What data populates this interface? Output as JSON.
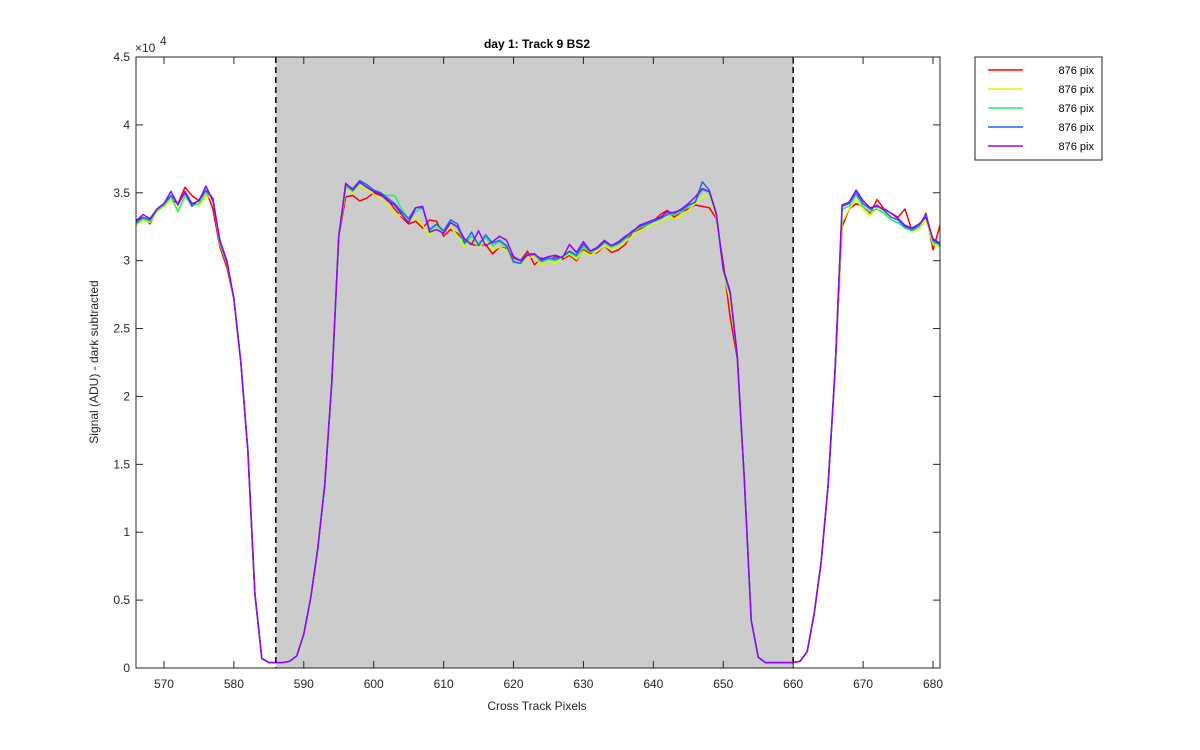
{
  "chart_data": {
    "type": "line",
    "title": "day 1: Track 9  BS2",
    "xlabel": "Cross Track Pixels",
    "ylabel": "Signal (ADU) - dark subtracted",
    "y_exponent_label": "×10",
    "y_exponent_power": "4",
    "xlim": [
      566,
      681
    ],
    "ylim": [
      0,
      4.5
    ],
    "y_scale_factor": 10000,
    "xticks": [
      570,
      580,
      590,
      600,
      610,
      620,
      630,
      640,
      650,
      660,
      670,
      680
    ],
    "xtick_labels": [
      "570",
      "580",
      "590",
      "600",
      "610",
      "620",
      "630",
      "640",
      "650",
      "660",
      "670",
      "680"
    ],
    "yticks": [
      0,
      0.5,
      1,
      1.5,
      2,
      2.5,
      3,
      3.5,
      4,
      4.5
    ],
    "ytick_labels": [
      "0",
      "0.5",
      "1",
      "1.5",
      "2",
      "2.5",
      "3",
      "3.5",
      "4",
      "4.5"
    ],
    "grid": false,
    "legend_position": "outside-top-right",
    "shaded_region": {
      "x_start": 586,
      "x_end": 660,
      "color": "#cccccc"
    },
    "vlines": [
      586,
      660
    ],
    "x": [
      566,
      567,
      568,
      569,
      570,
      571,
      572,
      573,
      574,
      575,
      576,
      577,
      578,
      579,
      580,
      581,
      582,
      583,
      584,
      585,
      586,
      587,
      588,
      589,
      590,
      591,
      592,
      593,
      594,
      595,
      596,
      597,
      598,
      599,
      600,
      601,
      602,
      603,
      604,
      605,
      606,
      607,
      608,
      609,
      610,
      611,
      612,
      613,
      614,
      615,
      616,
      617,
      618,
      619,
      620,
      621,
      622,
      623,
      624,
      625,
      626,
      627,
      628,
      629,
      630,
      631,
      632,
      633,
      634,
      635,
      636,
      637,
      638,
      639,
      640,
      641,
      642,
      643,
      644,
      645,
      646,
      647,
      648,
      649,
      650,
      651,
      652,
      653,
      654,
      655,
      656,
      657,
      658,
      659,
      660,
      661,
      662,
      663,
      664,
      665,
      666,
      667,
      668,
      669,
      670,
      671,
      672,
      673,
      674,
      675,
      676,
      677,
      678,
      679,
      680,
      681
    ],
    "series": [
      {
        "name": "876 pix",
        "color": "#ff0000",
        "values": [
          3.3,
          3.32,
          3.27,
          3.37,
          3.4,
          3.45,
          3.42,
          3.54,
          3.48,
          3.44,
          3.52,
          3.38,
          3.1,
          2.95,
          2.72,
          2.25,
          1.6,
          0.55,
          0.07,
          0.04,
          0.04,
          0.04,
          0.05,
          0.09,
          0.25,
          0.52,
          0.88,
          1.35,
          2.1,
          3.18,
          3.47,
          3.48,
          3.44,
          3.46,
          3.5,
          3.48,
          3.45,
          3.38,
          3.32,
          3.27,
          3.29,
          3.24,
          3.3,
          3.29,
          3.18,
          3.23,
          3.2,
          3.14,
          3.12,
          3.11,
          3.12,
          3.05,
          3.1,
          3.09,
          3.02,
          3.0,
          3.07,
          2.97,
          3.02,
          3.0,
          3.03,
          3.01,
          3.04,
          3.0,
          3.08,
          3.05,
          3.06,
          3.11,
          3.06,
          3.08,
          3.12,
          3.21,
          3.23,
          3.26,
          3.29,
          3.34,
          3.37,
          3.32,
          3.36,
          3.38,
          3.41,
          3.4,
          3.39,
          3.31,
          2.98,
          2.58,
          2.28,
          1.4,
          0.35,
          0.08,
          0.04,
          0.04,
          0.04,
          0.04,
          0.04,
          0.05,
          0.12,
          0.4,
          0.78,
          1.35,
          2.2,
          3.25,
          3.38,
          3.42,
          3.4,
          3.35,
          3.45,
          3.38,
          3.35,
          3.32,
          3.38,
          3.22,
          3.25,
          3.35,
          3.08,
          3.26
        ]
      },
      {
        "name": "876 pix",
        "color": "#ccff00",
        "values": [
          3.26,
          3.3,
          3.28,
          3.36,
          3.4,
          3.45,
          3.38,
          3.46,
          3.43,
          3.4,
          3.48,
          3.45,
          3.12,
          2.98,
          2.72,
          2.25,
          1.6,
          0.55,
          0.07,
          0.04,
          0.04,
          0.04,
          0.05,
          0.09,
          0.25,
          0.52,
          0.88,
          1.35,
          2.1,
          3.18,
          3.52,
          3.5,
          3.55,
          3.53,
          3.49,
          3.46,
          3.41,
          3.35,
          3.33,
          3.29,
          3.32,
          3.26,
          3.18,
          3.24,
          3.2,
          3.25,
          3.18,
          3.1,
          3.16,
          3.1,
          3.14,
          3.08,
          3.1,
          3.08,
          3.0,
          2.98,
          3.02,
          3.03,
          2.96,
          3.0,
          2.98,
          3.02,
          3.05,
          3.01,
          3.07,
          3.04,
          3.07,
          3.11,
          3.08,
          3.1,
          3.14,
          3.18,
          3.22,
          3.24,
          3.27,
          3.29,
          3.32,
          3.31,
          3.33,
          3.37,
          3.42,
          3.47,
          3.48,
          3.32,
          2.92,
          2.7,
          2.3,
          1.4,
          0.35,
          0.08,
          0.04,
          0.04,
          0.04,
          0.04,
          0.04,
          0.05,
          0.12,
          0.4,
          0.78,
          1.35,
          2.2,
          3.28,
          3.38,
          3.45,
          3.38,
          3.33,
          3.4,
          3.36,
          3.32,
          3.3,
          3.25,
          3.22,
          3.23,
          3.3,
          3.12,
          3.1
        ]
      },
      {
        "name": "876 pix",
        "color": "#22ee66",
        "values": [
          3.27,
          3.31,
          3.29,
          3.37,
          3.41,
          3.47,
          3.36,
          3.48,
          3.41,
          3.42,
          3.5,
          3.46,
          3.13,
          2.99,
          2.72,
          2.25,
          1.6,
          0.55,
          0.07,
          0.04,
          0.04,
          0.04,
          0.05,
          0.09,
          0.25,
          0.52,
          0.88,
          1.35,
          2.1,
          3.18,
          3.55,
          3.51,
          3.57,
          3.55,
          3.52,
          3.49,
          3.48,
          3.48,
          3.38,
          3.3,
          3.36,
          3.39,
          3.22,
          3.26,
          3.21,
          3.28,
          3.24,
          3.12,
          3.18,
          3.13,
          3.17,
          3.11,
          3.14,
          3.1,
          3.0,
          2.98,
          3.04,
          3.04,
          2.99,
          3.01,
          3.0,
          3.03,
          3.06,
          3.03,
          3.1,
          3.06,
          3.09,
          3.13,
          3.1,
          3.12,
          3.16,
          3.21,
          3.24,
          3.26,
          3.29,
          3.31,
          3.34,
          3.34,
          3.36,
          3.4,
          3.44,
          3.52,
          3.5,
          3.34,
          2.93,
          2.75,
          2.3,
          1.4,
          0.35,
          0.08,
          0.04,
          0.04,
          0.04,
          0.04,
          0.04,
          0.05,
          0.12,
          0.4,
          0.78,
          1.35,
          2.2,
          3.38,
          3.4,
          3.48,
          3.4,
          3.36,
          3.38,
          3.35,
          3.3,
          3.28,
          3.24,
          3.22,
          3.25,
          3.33,
          3.14,
          3.11
        ]
      },
      {
        "name": "876 pix",
        "color": "#1a66ff",
        "values": [
          3.28,
          3.32,
          3.3,
          3.38,
          3.42,
          3.48,
          3.42,
          3.5,
          3.4,
          3.45,
          3.52,
          3.46,
          3.14,
          2.99,
          2.72,
          2.25,
          1.6,
          0.55,
          0.07,
          0.04,
          0.04,
          0.04,
          0.05,
          0.09,
          0.25,
          0.52,
          0.88,
          1.35,
          2.1,
          3.18,
          3.56,
          3.53,
          3.59,
          3.56,
          3.52,
          3.5,
          3.46,
          3.42,
          3.36,
          3.31,
          3.39,
          3.39,
          3.23,
          3.27,
          3.22,
          3.3,
          3.27,
          3.13,
          3.21,
          3.11,
          3.19,
          3.13,
          3.15,
          3.11,
          2.99,
          2.98,
          3.05,
          3.05,
          3.0,
          3.02,
          3.01,
          3.03,
          3.07,
          3.04,
          3.12,
          3.07,
          3.09,
          3.14,
          3.11,
          3.13,
          3.17,
          3.22,
          3.25,
          3.27,
          3.29,
          3.31,
          3.34,
          3.36,
          3.37,
          3.41,
          3.43,
          3.58,
          3.52,
          3.34,
          2.93,
          2.76,
          2.3,
          1.4,
          0.35,
          0.08,
          0.04,
          0.04,
          0.04,
          0.04,
          0.04,
          0.05,
          0.12,
          0.4,
          0.78,
          1.35,
          2.2,
          3.4,
          3.42,
          3.5,
          3.42,
          3.38,
          3.41,
          3.37,
          3.32,
          3.3,
          3.25,
          3.23,
          3.26,
          3.34,
          3.15,
          3.12
        ]
      },
      {
        "name": "876 pix",
        "color": "#9900ff",
        "values": [
          3.29,
          3.34,
          3.31,
          3.38,
          3.42,
          3.51,
          3.41,
          3.51,
          3.42,
          3.44,
          3.55,
          3.44,
          3.15,
          3.0,
          2.72,
          2.25,
          1.6,
          0.55,
          0.07,
          0.04,
          0.04,
          0.04,
          0.05,
          0.09,
          0.25,
          0.52,
          0.88,
          1.35,
          2.1,
          3.18,
          3.57,
          3.52,
          3.58,
          3.54,
          3.51,
          3.49,
          3.44,
          3.41,
          3.34,
          3.28,
          3.39,
          3.4,
          3.21,
          3.23,
          3.2,
          3.28,
          3.25,
          3.16,
          3.12,
          3.22,
          3.11,
          3.14,
          3.18,
          3.15,
          3.03,
          3.0,
          3.04,
          3.05,
          3.01,
          3.03,
          3.04,
          3.02,
          3.12,
          3.06,
          3.14,
          3.07,
          3.1,
          3.15,
          3.11,
          3.14,
          3.18,
          3.21,
          3.26,
          3.28,
          3.3,
          3.32,
          3.36,
          3.35,
          3.38,
          3.42,
          3.47,
          3.53,
          3.51,
          3.35,
          2.94,
          2.77,
          2.3,
          1.4,
          0.35,
          0.08,
          0.04,
          0.04,
          0.04,
          0.04,
          0.04,
          0.05,
          0.12,
          0.4,
          0.78,
          1.35,
          2.2,
          3.41,
          3.43,
          3.52,
          3.44,
          3.39,
          3.4,
          3.38,
          3.35,
          3.31,
          3.26,
          3.24,
          3.27,
          3.32,
          3.16,
          3.13
        ]
      }
    ]
  }
}
